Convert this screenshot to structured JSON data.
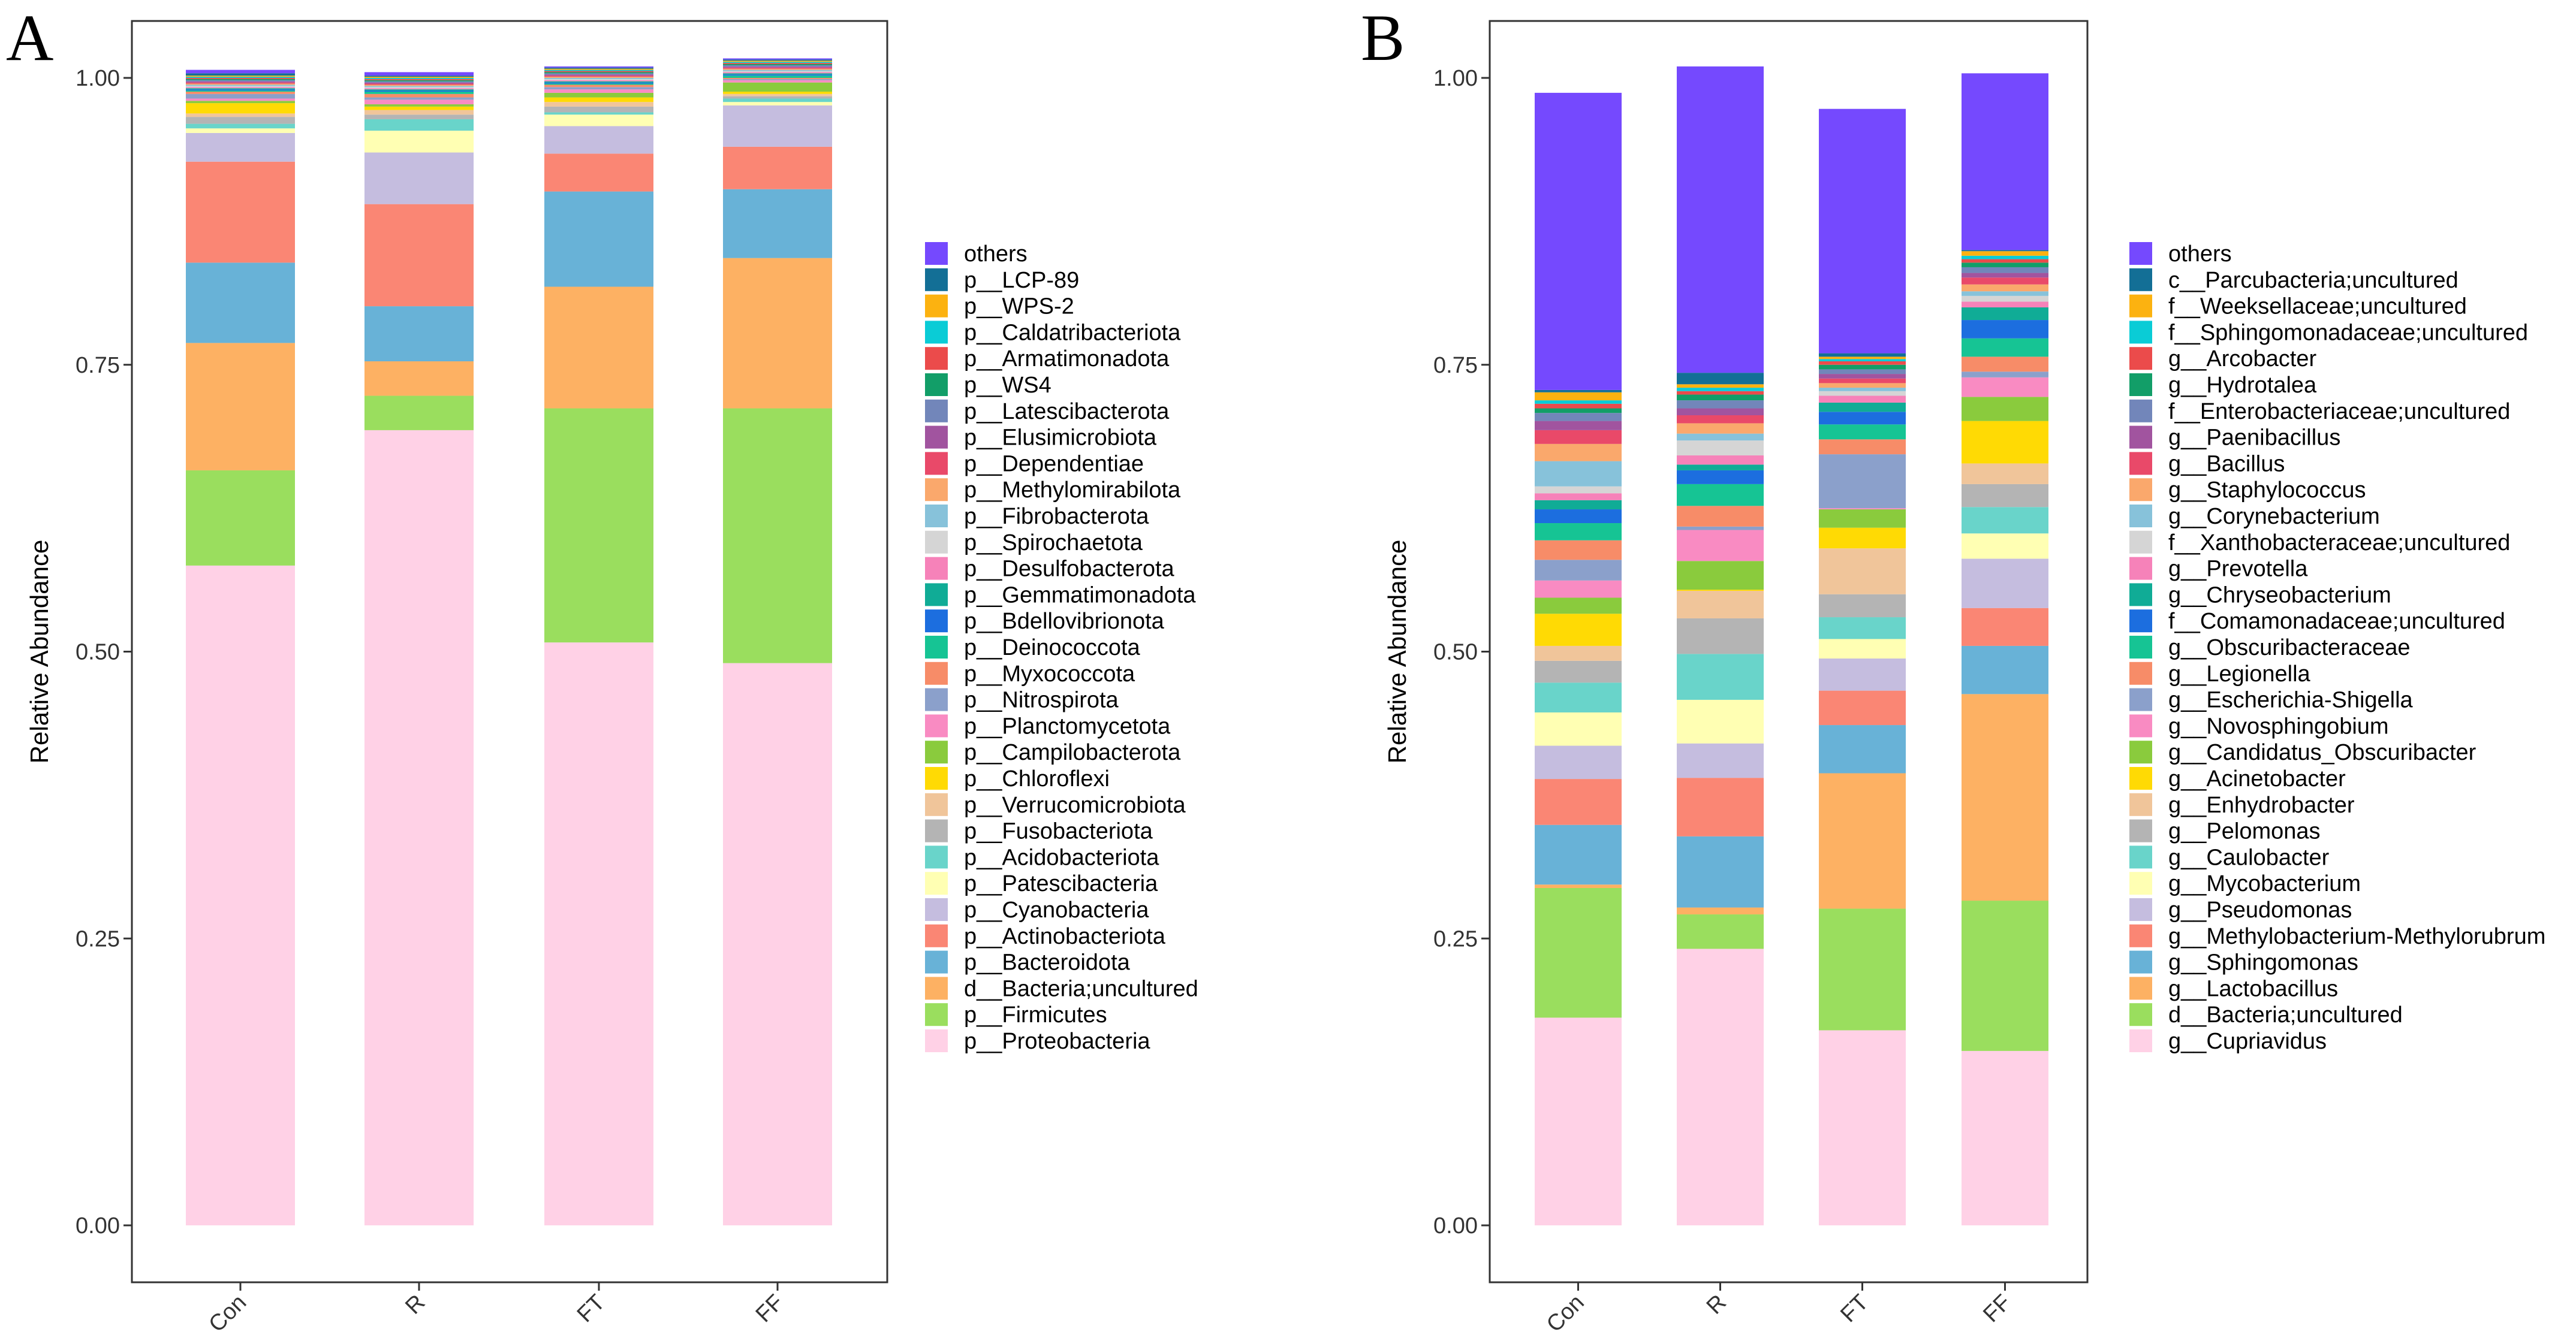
{
  "panels": {
    "A": {
      "letter": "A"
    },
    "B": {
      "letter": "B"
    }
  },
  "chart_data": [
    {
      "type": "bar",
      "stacked": true,
      "panel": "A",
      "title": "",
      "xlabel": "",
      "ylabel": "Relative Abundance",
      "ylim": [
        0,
        1
      ],
      "yticks": [
        "0.00",
        "0.25",
        "0.50",
        "0.75",
        "1.00"
      ],
      "categories": [
        "Con",
        "R",
        "FT",
        "FF"
      ],
      "legend_position": "right",
      "series": [
        {
          "name": "p__Proteobacteria",
          "color": "#FFD1E6",
          "values": [
            0.575,
            0.693,
            0.508,
            0.49
          ]
        },
        {
          "name": "p__Firmicutes",
          "color": "#9ADE5E",
          "values": [
            0.083,
            0.03,
            0.204,
            0.222
          ]
        },
        {
          "name": "d__Bacteria;uncultured",
          "color": "#FDB163",
          "values": [
            0.111,
            0.03,
            0.106,
            0.131
          ]
        },
        {
          "name": "p__Bacteroidota",
          "color": "#68B2D7",
          "values": [
            0.07,
            0.048,
            0.083,
            0.06
          ]
        },
        {
          "name": "p__Actinobacteriota",
          "color": "#FA8674",
          "values": [
            0.088,
            0.089,
            0.033,
            0.037
          ]
        },
        {
          "name": "p__Cyanobacteria",
          "color": "#C5BDDF",
          "values": [
            0.025,
            0.045,
            0.024,
            0.036
          ]
        },
        {
          "name": "p__Patescibacteria",
          "color": "#FFFFB3",
          "values": [
            0.004,
            0.019,
            0.01,
            0.003
          ]
        },
        {
          "name": "p__Acidobacteriota",
          "color": "#69D4CA",
          "values": [
            0.004,
            0.01,
            0.002,
            0.003
          ]
        },
        {
          "name": "p__Fusobacteriota",
          "color": "#B4B4B4",
          "values": [
            0.006,
            0.004,
            0.005,
            0.002
          ]
        },
        {
          "name": "p__Verrucomicrobiota",
          "color": "#F0C59A",
          "values": [
            0.003,
            0.004,
            0.004,
            0.002
          ]
        },
        {
          "name": "p__Chloroflexi",
          "color": "#FFDA04",
          "values": [
            0.009,
            0.003,
            0.004,
            0.002
          ]
        },
        {
          "name": "p__Campilobacterota",
          "color": "#8ACB3D",
          "values": [
            0.002,
            0.002,
            0.004,
            0.008
          ]
        },
        {
          "name": "p__Planctomycetota",
          "color": "#F98BC2",
          "values": [
            0.002,
            0.004,
            0.003,
            0.002
          ]
        },
        {
          "name": "p__Nitrospirota",
          "color": "#8BA0CB",
          "values": [
            0.004,
            0.002,
            0.002,
            0.001
          ]
        },
        {
          "name": "p__Myxococcota",
          "color": "#F78C68",
          "values": [
            0.002,
            0.003,
            0.002,
            0.001
          ]
        },
        {
          "name": "p__Deinococcota",
          "color": "#16C494",
          "values": [
            0.001,
            0.002,
            0.001,
            0.002
          ]
        },
        {
          "name": "p__Bdellovibrionota",
          "color": "#1C6EDF",
          "values": [
            0.001,
            0.001,
            0.001,
            0.001
          ]
        },
        {
          "name": "p__Gemmatimonadota",
          "color": "#10AC96",
          "values": [
            0.001,
            0.001,
            0.001,
            0.001
          ]
        },
        {
          "name": "p__Desulfobacterota",
          "color": "#F682B9",
          "values": [
            0.001,
            0.001,
            0.001,
            0.001
          ]
        },
        {
          "name": "p__Spirochaetota",
          "color": "#D5D5D5",
          "values": [
            0.001,
            0.001,
            0.001,
            0.001
          ]
        },
        {
          "name": "p__Fibrobacterota",
          "color": "#87C2DA",
          "values": [
            0.001,
            0.001,
            0.001,
            0.001
          ]
        },
        {
          "name": "p__Methylomirabilota",
          "color": "#FAA86C",
          "values": [
            0.001,
            0.001,
            0.001,
            0.001
          ]
        },
        {
          "name": "p__Dependentiae",
          "color": "#E94969",
          "values": [
            0.001,
            0.001,
            0.001,
            0.001
          ]
        },
        {
          "name": "p__Elusimicrobiota",
          "color": "#A1549F",
          "values": [
            0.001,
            0.001,
            0.001,
            0.001
          ]
        },
        {
          "name": "p__Latescibacterota",
          "color": "#7286BA",
          "values": [
            0.001,
            0.001,
            0.001,
            0.001
          ]
        },
        {
          "name": "p__WS4",
          "color": "#129E68",
          "values": [
            0.001,
            0.001,
            0.001,
            0.001
          ]
        },
        {
          "name": "p__Armatimonadota",
          "color": "#EB4B4B",
          "values": [
            0.001,
            0.001,
            0.001,
            0.001
          ]
        },
        {
          "name": "p__Caldatribacteriota",
          "color": "#0ACCD6",
          "values": [
            0.001,
            0.001,
            0.001,
            0.001
          ]
        },
        {
          "name": "p__WPS-2",
          "color": "#FCB210",
          "values": [
            0.001,
            0.001,
            0.001,
            0.001
          ]
        },
        {
          "name": "p__LCP-89",
          "color": "#136F96",
          "values": [
            0.002,
            0.001,
            0.001,
            0.001
          ]
        },
        {
          "name": "others",
          "color": "#7549FE",
          "values": [
            0.003,
            0.003,
            0.001,
            0.001
          ]
        }
      ]
    },
    {
      "type": "bar",
      "stacked": true,
      "panel": "B",
      "title": "",
      "xlabel": "",
      "ylabel": "Relative Abundance",
      "ylim": [
        0,
        1
      ],
      "yticks": [
        "0.00",
        "0.25",
        "0.50",
        "0.75",
        "1.00"
      ],
      "categories": [
        "Con",
        "R",
        "FT",
        "FF"
      ],
      "legend_position": "right",
      "series": [
        {
          "name": "g__Cupriavidus",
          "color": "#FFD1E6",
          "values": [
            0.181,
            0.241,
            0.17,
            0.152
          ]
        },
        {
          "name": "d__Bacteria;uncultured",
          "color": "#9ADE5E",
          "values": [
            0.113,
            0.03,
            0.106,
            0.131
          ]
        },
        {
          "name": "g__Lactobacillus",
          "color": "#FDB163",
          "values": [
            0.003,
            0.006,
            0.118,
            0.18
          ]
        },
        {
          "name": "g__Sphingomonas",
          "color": "#68B2D7",
          "values": [
            0.052,
            0.062,
            0.042,
            0.042
          ]
        },
        {
          "name": "g__Methylobacterium-Methylorubrum",
          "color": "#FA8674",
          "values": [
            0.04,
            0.051,
            0.03,
            0.033
          ]
        },
        {
          "name": "g__Pseudomonas",
          "color": "#C5BDDF",
          "values": [
            0.029,
            0.03,
            0.028,
            0.043
          ]
        },
        {
          "name": "g__Mycobacterium",
          "color": "#FFFFB3",
          "values": [
            0.029,
            0.038,
            0.017,
            0.022
          ]
        },
        {
          "name": "g__Caulobacter",
          "color": "#69D4CA",
          "values": [
            0.026,
            0.04,
            0.019,
            0.023
          ]
        },
        {
          "name": "g__Pelomonas",
          "color": "#B4B4B4",
          "values": [
            0.019,
            0.031,
            0.02,
            0.02
          ]
        },
        {
          "name": "g__Enhydrobacter",
          "color": "#F0C59A",
          "values": [
            0.013,
            0.024,
            0.04,
            0.018
          ]
        },
        {
          "name": "g__Acinetobacter",
          "color": "#FFDA04",
          "values": [
            0.028,
            0.001,
            0.018,
            0.037
          ]
        },
        {
          "name": "g__Candidatus_Obscuribacter",
          "color": "#8ACB3D",
          "values": [
            0.014,
            0.025,
            0.016,
            0.021
          ]
        },
        {
          "name": "g__Novosphingobium",
          "color": "#F98BC2",
          "values": [
            0.015,
            0.027,
            0.001,
            0.017
          ]
        },
        {
          "name": "g__Escherichia-Shigella",
          "color": "#8BA0CB",
          "values": [
            0.018,
            0.003,
            0.047,
            0.005
          ]
        },
        {
          "name": "g__Legionella",
          "color": "#F78C68",
          "values": [
            0.017,
            0.018,
            0.013,
            0.013
          ]
        },
        {
          "name": "g__Obscuribacteraceae",
          "color": "#16C494",
          "values": [
            0.015,
            0.019,
            0.013,
            0.016
          ]
        },
        {
          "name": "f__Comamonadaceae;uncultured",
          "color": "#1C6EDF",
          "values": [
            0.012,
            0.012,
            0.011,
            0.016
          ]
        },
        {
          "name": "g__Chryseobacterium",
          "color": "#10AC96",
          "values": [
            0.008,
            0.005,
            0.008,
            0.011
          ]
        },
        {
          "name": "g__Prevotella",
          "color": "#F682B9",
          "values": [
            0.006,
            0.008,
            0.006,
            0.005
          ]
        },
        {
          "name": "f__Xanthobacteraceae;uncultured",
          "color": "#D5D5D5",
          "values": [
            0.006,
            0.013,
            0.004,
            0.005
          ]
        },
        {
          "name": "g__Corynebacterium",
          "color": "#87C2DA",
          "values": [
            0.022,
            0.006,
            0.003,
            0.004
          ]
        },
        {
          "name": "g__Staphylococcus",
          "color": "#FAA86C",
          "values": [
            0.015,
            0.009,
            0.004,
            0.006
          ]
        },
        {
          "name": "g__Bacillus",
          "color": "#E94969",
          "values": [
            0.012,
            0.007,
            0.004,
            0.006
          ]
        },
        {
          "name": "g__Paenibacillus",
          "color": "#A1549F",
          "values": [
            0.008,
            0.006,
            0.004,
            0.004
          ]
        },
        {
          "name": "f__Enterobacteriaceae;uncultured",
          "color": "#7286BA",
          "values": [
            0.007,
            0.007,
            0.004,
            0.005
          ]
        },
        {
          "name": "g__Hydrotalea",
          "color": "#129E68",
          "values": [
            0.004,
            0.005,
            0.004,
            0.004
          ]
        },
        {
          "name": "g__Arcobacter",
          "color": "#EB4B4B",
          "values": [
            0.004,
            0.003,
            0.003,
            0.003
          ]
        },
        {
          "name": "f__Sphingomonadaceae;uncultured",
          "color": "#0ACCD6",
          "values": [
            0.003,
            0.003,
            0.002,
            0.003
          ]
        },
        {
          "name": "f__Weeksellaceae;uncultured",
          "color": "#FCB210",
          "values": [
            0.007,
            0.003,
            0.002,
            0.004
          ]
        },
        {
          "name": "c__Parcubacteria;uncultured",
          "color": "#136F96",
          "values": [
            0.002,
            0.01,
            0.003,
            0.001
          ]
        },
        {
          "name": "others",
          "color": "#7549FE",
          "values": [
            0.259,
            0.267,
            0.213,
            0.154
          ]
        }
      ]
    }
  ]
}
